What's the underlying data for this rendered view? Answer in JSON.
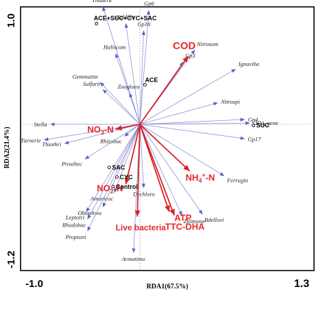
{
  "chart_data": {
    "type": "scatter",
    "title": "",
    "xlabel": "RDA1(67.5%)",
    "ylabel": "RDA2(21.4%)",
    "xlim": [
      -1.0,
      1.3
    ],
    "ylim": [
      -1.2,
      1.0
    ],
    "x_tick_labels": [
      "-1.0",
      "1.3"
    ],
    "y_tick_labels": [
      "1.0",
      "-1.2"
    ],
    "colors": {
      "species_arrow": "#8a8fd6",
      "env_arrow": "#d8232a",
      "env_text": "#e8262a",
      "frame": "#000000"
    },
    "species": [
      {
        "name": "Thauera",
        "x": -0.29,
        "y": 0.98
      },
      {
        "name": "Caldilin",
        "x": -0.11,
        "y": 0.84
      },
      {
        "name": "Gp6",
        "x": 0.07,
        "y": 0.95
      },
      {
        "name": "Gp16",
        "x": 0.03,
        "y": 0.78
      },
      {
        "name": "Haliscom",
        "x": -0.19,
        "y": 0.59
      },
      {
        "name": "Nitrosom",
        "x": 0.43,
        "y": 0.62
      },
      {
        "name": "Gp3",
        "x": 0.34,
        "y": 0.52
      },
      {
        "name": "Ignaviba",
        "x": 0.75,
        "y": 0.46
      },
      {
        "name": "Gemmatim",
        "x": -0.31,
        "y": 0.35
      },
      {
        "name": "Sulfurit",
        "x": -0.29,
        "y": 0.29
      },
      {
        "name": "Zoogloea",
        "x": -0.08,
        "y": 0.26
      },
      {
        "name": "Nitrospi",
        "x": 0.61,
        "y": 0.18
      },
      {
        "name": "Gp4",
        "x": 0.82,
        "y": 0.04
      },
      {
        "name": "OD1_gene",
        "x": 0.86,
        "y": 0.01
      },
      {
        "name": "Stella",
        "x": -0.7,
        "y": 0.0
      },
      {
        "name": "Gp17",
        "x": 0.82,
        "y": -0.12
      },
      {
        "name": "Turnerie",
        "x": -0.75,
        "y": -0.13
      },
      {
        "name": "Thiothri",
        "x": -0.59,
        "y": -0.16
      },
      {
        "name": "Rhizobac",
        "x": -0.12,
        "y": -0.1
      },
      {
        "name": "Prosthec",
        "x": -0.43,
        "y": -0.29
      },
      {
        "name": "Amaricoc",
        "x": -0.2,
        "y": -0.57
      },
      {
        "name": "Dechloro",
        "x": 0.03,
        "y": -0.53
      },
      {
        "name": "Ferrugin",
        "x": 0.66,
        "y": -0.43
      },
      {
        "name": "Ohtaekwa",
        "x": -0.29,
        "y": -0.69
      },
      {
        "name": "Leptotri",
        "x": -0.42,
        "y": -0.73
      },
      {
        "name": "Rhodobac",
        "x": -0.41,
        "y": -0.79
      },
      {
        "name": "Bdellovi",
        "x": 0.49,
        "y": -0.75
      },
      {
        "name": "Zilimona",
        "x": 0.33,
        "y": -0.76
      },
      {
        "name": "Propioni",
        "x": -0.41,
        "y": -0.89
      },
      {
        "name": "Armatimo",
        "x": -0.05,
        "y": -1.07
      }
    ],
    "environmental_factors": [
      {
        "name": "COD",
        "sub": "",
        "sup": "",
        "x": 0.38,
        "y": 0.57,
        "size": 15
      },
      {
        "name": "NO",
        "sub": "3",
        "sup": "",
        "suffix": "-N",
        "x": -0.19,
        "y": -0.04,
        "size": 13
      },
      {
        "name": "NH",
        "sub": "4",
        "sup": "+",
        "suffix": "-N",
        "x": 0.39,
        "y": -0.39,
        "size": 13
      },
      {
        "name": "NO",
        "sub": "2",
        "sup": "",
        "suffix": "-N",
        "x": -0.11,
        "y": -0.5,
        "size": 13
      },
      {
        "name": "ATP",
        "sub": "",
        "sup": "",
        "x": 0.27,
        "y": -0.76,
        "size": 13
      },
      {
        "name": "TTC-DHA",
        "sub": "",
        "sup": "",
        "x": 0.23,
        "y": -0.73,
        "size": 13
      },
      {
        "name": "Live bacteria",
        "sub": "",
        "sup": "",
        "x": -0.02,
        "y": -0.77,
        "size": 12
      }
    ],
    "samples": [
      {
        "name": "ACE+SUC+CYC+SAC",
        "x": -0.34,
        "y": 0.84
      },
      {
        "name": "ACE",
        "x": 0.04,
        "y": 0.33
      },
      {
        "name": "SUC",
        "x": 0.89,
        "y": -0.01
      },
      {
        "name": "SAC",
        "x": -0.24,
        "y": -0.36
      },
      {
        "name": "CYC",
        "x": -0.18,
        "y": -0.44
      },
      {
        "name": "Control",
        "x": -0.21,
        "y": -0.52
      }
    ]
  }
}
